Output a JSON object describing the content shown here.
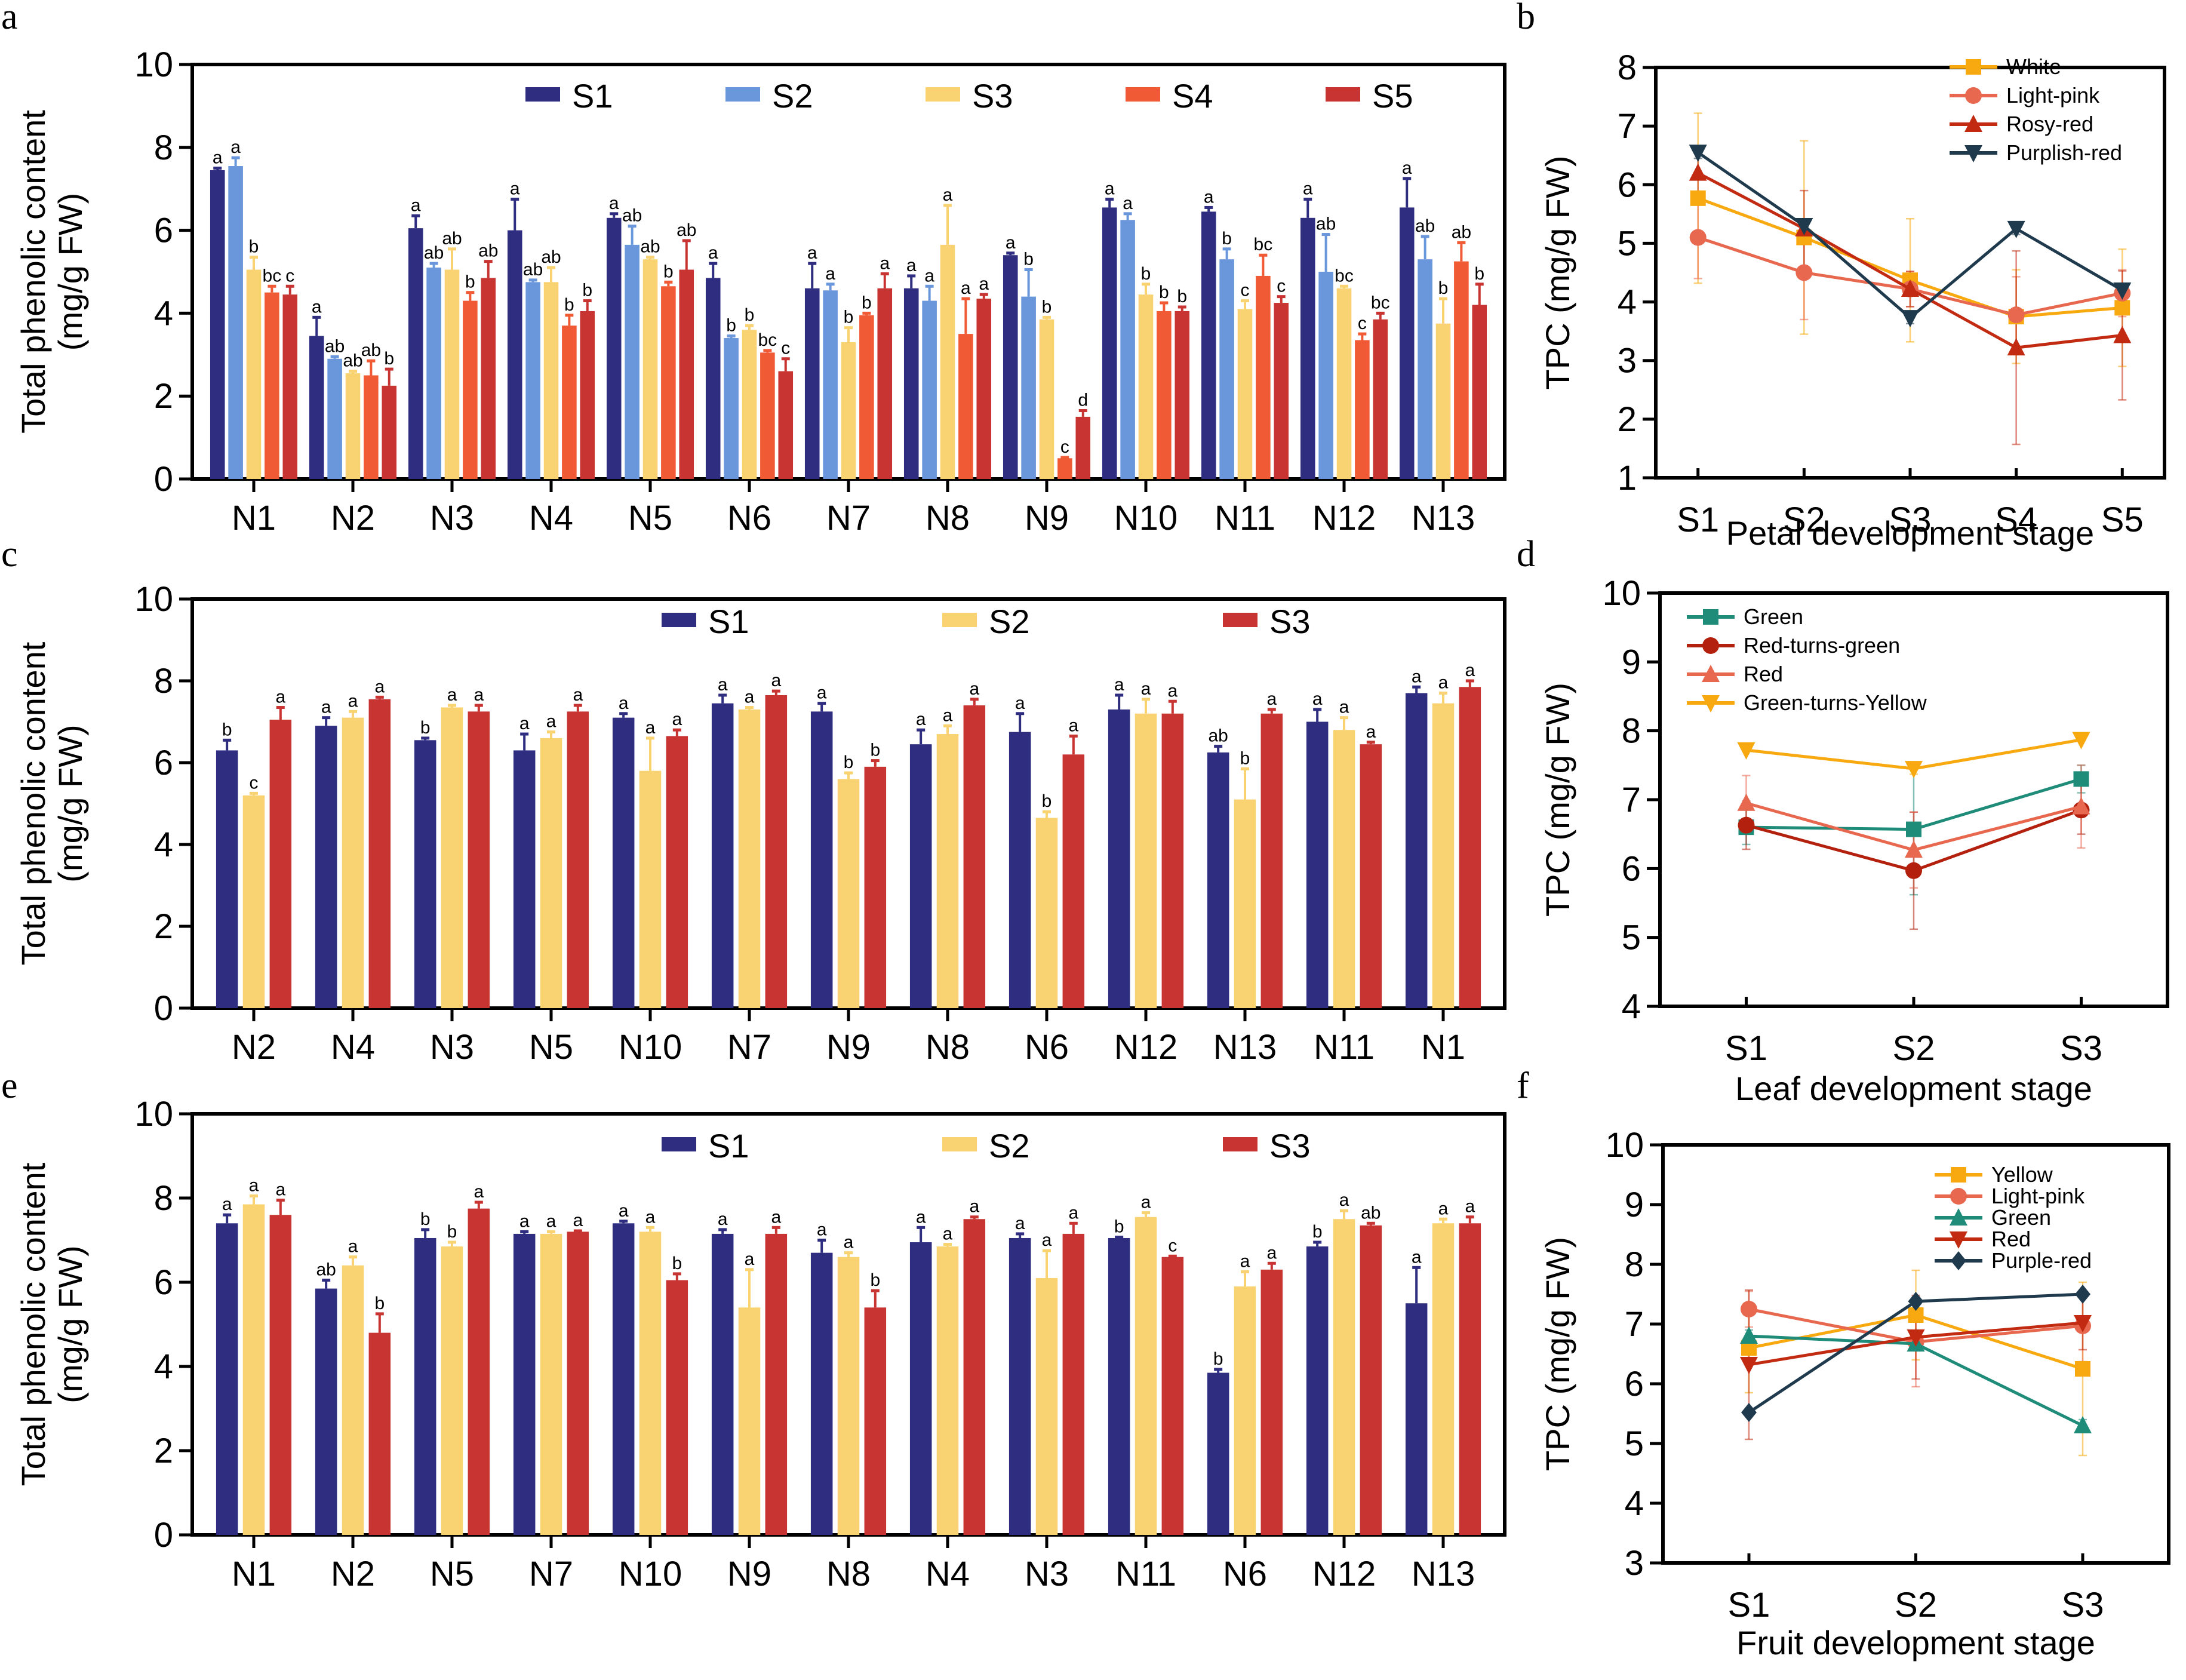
{
  "figure": {
    "panel_letters": [
      "a",
      "b",
      "c",
      "d",
      "e",
      "f"
    ]
  },
  "chart_data": [
    {
      "id": "a",
      "type": "bar",
      "title": "",
      "ylabel_line1": "Total phenolic content",
      "ylabel_line2": "(mg/g FW)",
      "xlabel": "",
      "ylim": [
        0,
        10
      ],
      "yticks": [
        0,
        2,
        4,
        6,
        8,
        10
      ],
      "legend_position": "top-center",
      "categories": [
        "N1",
        "N2",
        "N3",
        "N4",
        "N5",
        "N6",
        "N7",
        "N8",
        "N9",
        "N10",
        "N11",
        "N12",
        "N13"
      ],
      "series": [
        {
          "name": "S1",
          "color": "#2e2d7f",
          "values": [
            7.45,
            3.45,
            6.05,
            6.0,
            6.3,
            4.85,
            4.6,
            4.6,
            5.4,
            6.55,
            6.45,
            6.3,
            6.55
          ],
          "errors": [
            0.05,
            0.45,
            0.3,
            0.75,
            0.1,
            0.35,
            0.6,
            0.3,
            0.05,
            0.2,
            0.1,
            0.45,
            0.7
          ],
          "letters": [
            "a",
            "a",
            "a",
            "a",
            "a",
            "a",
            "a",
            "a",
            "a",
            "a",
            "a",
            "a",
            "a"
          ]
        },
        {
          "name": "S2",
          "color": "#6a96db",
          "values": [
            7.55,
            2.9,
            5.1,
            4.75,
            5.65,
            3.4,
            4.55,
            4.3,
            4.4,
            6.25,
            5.3,
            5.0,
            5.3
          ],
          "errors": [
            0.2,
            0.05,
            0.1,
            0.05,
            0.45,
            0.05,
            0.15,
            0.35,
            0.65,
            0.15,
            0.25,
            0.9,
            0.55
          ],
          "letters": [
            "a",
            "ab",
            "ab",
            "ab",
            "ab",
            "b",
            "a",
            "a",
            "b",
            "a",
            "b",
            "ab",
            "ab"
          ]
        },
        {
          "name": "S3",
          "color": "#f9d372",
          "values": [
            5.05,
            2.55,
            5.05,
            4.75,
            5.3,
            3.6,
            3.3,
            5.65,
            3.85,
            4.45,
            4.1,
            4.6,
            3.75
          ],
          "errors": [
            0.3,
            0.05,
            0.5,
            0.35,
            0.05,
            0.1,
            0.35,
            0.95,
            0.05,
            0.25,
            0.2,
            0.05,
            0.6
          ],
          "letters": [
            "b",
            "ab",
            "ab",
            "ab",
            "ab",
            "b",
            "b",
            "a",
            "b",
            "b",
            "c",
            "bc",
            "b"
          ]
        },
        {
          "name": "S4",
          "color": "#f05a35",
          "values": [
            4.5,
            2.5,
            4.3,
            3.7,
            4.65,
            3.05,
            3.95,
            3.5,
            0.5,
            4.05,
            4.9,
            3.35,
            5.25
          ],
          "errors": [
            0.15,
            0.35,
            0.2,
            0.25,
            0.1,
            0.05,
            0.05,
            0.85,
            0.02,
            0.2,
            0.5,
            0.15,
            0.45
          ],
          "letters": [
            "bc",
            "ab",
            "b",
            "b",
            "b",
            "bc",
            "b",
            "a",
            "c",
            "b",
            "bc",
            "c",
            "ab"
          ]
        },
        {
          "name": "S5",
          "color": "#c73432",
          "values": [
            4.45,
            2.25,
            4.85,
            4.05,
            5.05,
            2.6,
            4.6,
            4.35,
            1.5,
            4.05,
            4.25,
            3.85,
            4.2
          ],
          "errors": [
            0.2,
            0.4,
            0.4,
            0.25,
            0.7,
            0.3,
            0.35,
            0.1,
            0.15,
            0.1,
            0.15,
            0.15,
            0.5
          ],
          "letters": [
            "c",
            "b",
            "ab",
            "b",
            "ab",
            "c",
            "a",
            "a",
            "d",
            "b",
            "c",
            "bc",
            "b"
          ]
        }
      ]
    },
    {
      "id": "b",
      "type": "line",
      "title": "",
      "ylabel": "TPC (mg/g FW)",
      "xlabel": "Petal development stage",
      "ylim": [
        1,
        8
      ],
      "yticks": [
        1,
        2,
        3,
        4,
        5,
        6,
        7,
        8
      ],
      "x": [
        "S1",
        "S2",
        "S3",
        "S4",
        "S5"
      ],
      "legend_position": "top-right",
      "series": [
        {
          "name": "White",
          "color": "#f7a90f",
          "marker": "square",
          "values": [
            5.77,
            5.1,
            4.37,
            3.75,
            3.9
          ],
          "errors": [
            1.45,
            1.65,
            1.05,
            0.8,
            1.0
          ]
        },
        {
          "name": "Light-pink",
          "color": "#e8684f",
          "marker": "circle",
          "values": [
            5.1,
            4.5,
            4.22,
            3.78,
            4.15
          ],
          "errors": [
            0.7,
            0.8,
            0.3,
            0.65,
            0.4
          ]
        },
        {
          "name": "Rosy-red",
          "color": "#c22b12",
          "marker": "triangle-up",
          "values": [
            6.2,
            5.25,
            4.22,
            3.22,
            3.43
          ],
          "errors": [
            0.45,
            0.65,
            0.3,
            1.65,
            1.1
          ]
        },
        {
          "name": "Purplish-red",
          "color": "#1f3a4d",
          "marker": "triangle-down",
          "values": [
            6.55,
            5.3,
            3.73,
            5.25,
            4.2
          ],
          "errors": [
            0.1,
            0.1,
            0.1,
            0.1,
            0.1
          ]
        }
      ]
    },
    {
      "id": "c",
      "type": "bar",
      "title": "",
      "ylabel_line1": "Total phenolic content",
      "ylabel_line2": "(mg/g FW)",
      "xlabel": "",
      "ylim": [
        0,
        10
      ],
      "yticks": [
        0,
        2,
        4,
        6,
        8,
        10
      ],
      "legend_position": "top-center",
      "categories": [
        "N2",
        "N4",
        "N3",
        "N5",
        "N10",
        "N7",
        "N9",
        "N8",
        "N6",
        "N12",
        "N13",
        "N11",
        "N1"
      ],
      "series": [
        {
          "name": "S1",
          "color": "#2e2d7f",
          "values": [
            6.3,
            6.9,
            6.55,
            6.3,
            7.1,
            7.45,
            7.25,
            6.45,
            6.75,
            7.3,
            6.25,
            7.0,
            7.7
          ],
          "errors": [
            0.25,
            0.2,
            0.05,
            0.4,
            0.1,
            0.2,
            0.2,
            0.35,
            0.45,
            0.35,
            0.15,
            0.3,
            0.15
          ],
          "letters": [
            "b",
            "a",
            "b",
            "a",
            "a",
            "a",
            "a",
            "a",
            "a",
            "a",
            "ab",
            "a",
            "a"
          ]
        },
        {
          "name": "S2",
          "color": "#f9d372",
          "values": [
            5.2,
            7.1,
            7.35,
            6.6,
            5.8,
            7.3,
            5.6,
            6.7,
            4.65,
            7.2,
            5.1,
            6.8,
            7.45
          ],
          "errors": [
            0.05,
            0.15,
            0.05,
            0.15,
            0.8,
            0.05,
            0.15,
            0.2,
            0.15,
            0.35,
            0.75,
            0.3,
            0.25
          ],
          "letters": [
            "c",
            "a",
            "a",
            "a",
            "a",
            "a",
            "b",
            "a",
            "b",
            "a",
            "b",
            "a",
            "a"
          ]
        },
        {
          "name": "S3",
          "color": "#c73432",
          "values": [
            7.05,
            7.55,
            7.25,
            7.25,
            6.65,
            7.65,
            5.9,
            7.4,
            6.2,
            7.2,
            7.2,
            6.45,
            7.85
          ],
          "errors": [
            0.3,
            0.05,
            0.15,
            0.15,
            0.15,
            0.1,
            0.15,
            0.15,
            0.45,
            0.3,
            0.1,
            0.05,
            0.15
          ],
          "letters": [
            "a",
            "a",
            "a",
            "a",
            "a",
            "a",
            "b",
            "a",
            "a",
            "a",
            "a",
            "a",
            "a"
          ]
        }
      ]
    },
    {
      "id": "d",
      "type": "line",
      "title": "",
      "ylabel": "TPC (mg/g FW)",
      "xlabel": "Leaf development stage",
      "ylim": [
        4,
        10
      ],
      "yticks": [
        4,
        5,
        6,
        7,
        8,
        9,
        10
      ],
      "x": [
        "S1",
        "S2",
        "S3"
      ],
      "legend_position": "top-left",
      "series": [
        {
          "name": "Green",
          "color": "#1f8c7a",
          "marker": "square",
          "values": [
            6.6,
            6.57,
            7.3
          ],
          "errors": [
            0.25,
            0.95,
            0.2
          ]
        },
        {
          "name": "Red-turns-green",
          "color": "#b3200e",
          "marker": "circle",
          "values": [
            6.63,
            5.97,
            6.85
          ],
          "errors": [
            0.35,
            0.85,
            0.35
          ]
        },
        {
          "name": "Red",
          "color": "#e8684f",
          "marker": "triangle-up",
          "values": [
            6.95,
            6.27,
            6.9
          ],
          "errors": [
            0.4,
            0.55,
            0.6
          ]
        },
        {
          "name": "Green-turns-Yellow",
          "color": "#f7a90f",
          "marker": "triangle-down",
          "values": [
            7.72,
            7.45,
            7.87
          ],
          "errors": [
            0.02,
            0.08,
            0.02
          ]
        }
      ]
    },
    {
      "id": "e",
      "type": "bar",
      "title": "",
      "ylabel_line1": "Total phenolic content",
      "ylabel_line2": "(mg/g FW)",
      "xlabel": "",
      "ylim": [
        0,
        10
      ],
      "yticks": [
        0,
        2,
        4,
        6,
        8,
        10
      ],
      "legend_position": "top-center",
      "categories": [
        "N1",
        "N2",
        "N5",
        "N7",
        "N10",
        "N9",
        "N8",
        "N4",
        "N3",
        "N11",
        "N6",
        "N12",
        "N13"
      ],
      "series": [
        {
          "name": "S1",
          "color": "#2e2d7f",
          "values": [
            7.4,
            5.85,
            7.05,
            7.15,
            7.4,
            7.15,
            6.7,
            6.95,
            7.05,
            7.05,
            3.85,
            6.85,
            5.5
          ],
          "errors": [
            0.2,
            0.2,
            0.2,
            0.05,
            0.05,
            0.1,
            0.3,
            0.35,
            0.1,
            0.02,
            0.08,
            0.1,
            0.85
          ],
          "letters": [
            "a",
            "ab",
            "b",
            "a",
            "a",
            "a",
            "a",
            "a",
            "a",
            "b",
            "b",
            "b",
            "a"
          ]
        },
        {
          "name": "S2",
          "color": "#f9d372",
          "values": [
            7.85,
            6.4,
            6.85,
            7.15,
            7.2,
            5.4,
            6.6,
            6.85,
            6.1,
            7.55,
            5.9,
            7.5,
            7.4
          ],
          "errors": [
            0.2,
            0.2,
            0.1,
            0.05,
            0.1,
            0.9,
            0.1,
            0.05,
            0.65,
            0.1,
            0.35,
            0.2,
            0.1
          ],
          "letters": [
            "a",
            "a",
            "b",
            "a",
            "a",
            "a",
            "a",
            "a",
            "a",
            "a",
            "a",
            "a",
            "a"
          ]
        },
        {
          "name": "S3",
          "color": "#c73432",
          "values": [
            7.6,
            4.8,
            7.75,
            7.2,
            6.05,
            7.15,
            5.4,
            7.5,
            7.15,
            6.6,
            6.3,
            7.35,
            7.4
          ],
          "errors": [
            0.35,
            0.45,
            0.15,
            0.02,
            0.15,
            0.15,
            0.4,
            0.05,
            0.25,
            0.02,
            0.15,
            0.05,
            0.15
          ],
          "letters": [
            "a",
            "b",
            "a",
            "a",
            "b",
            "a",
            "b",
            "a",
            "a",
            "c",
            "a",
            "ab",
            "a"
          ]
        }
      ]
    },
    {
      "id": "f",
      "type": "line",
      "title": "",
      "ylabel": "TPC (mg/g FW)",
      "xlabel": "Fruit development stage",
      "ylim": [
        3,
        10
      ],
      "yticks": [
        3,
        4,
        5,
        6,
        7,
        8,
        9,
        10
      ],
      "x": [
        "S1",
        "S2",
        "S3"
      ],
      "legend_position": "top-right",
      "series": [
        {
          "name": "Yellow",
          "color": "#f7a90f",
          "marker": "square",
          "values": [
            6.6,
            7.15,
            6.25
          ],
          "errors": [
            0.75,
            0.75,
            1.45
          ]
        },
        {
          "name": "Light-pink",
          "color": "#e8684f",
          "marker": "circle",
          "values": [
            7.25,
            6.7,
            6.97
          ],
          "errors": [
            0.3,
            0.75,
            0.6
          ]
        },
        {
          "name": "Green",
          "color": "#1f8c7a",
          "marker": "triangle-up",
          "values": [
            6.8,
            6.67,
            5.3
          ],
          "errors": [
            0.1,
            0.1,
            0.1
          ]
        },
        {
          "name": "Red",
          "color": "#c22b12",
          "marker": "triangle-down",
          "values": [
            6.32,
            6.78,
            7.02
          ],
          "errors": [
            1.25,
            0.7,
            0.45
          ]
        },
        {
          "name": "Purple-red",
          "color": "#1f3a4d",
          "marker": "diamond",
          "values": [
            5.52,
            7.38,
            7.5
          ],
          "errors": [
            0.05,
            0.05,
            0.05
          ]
        }
      ]
    }
  ]
}
